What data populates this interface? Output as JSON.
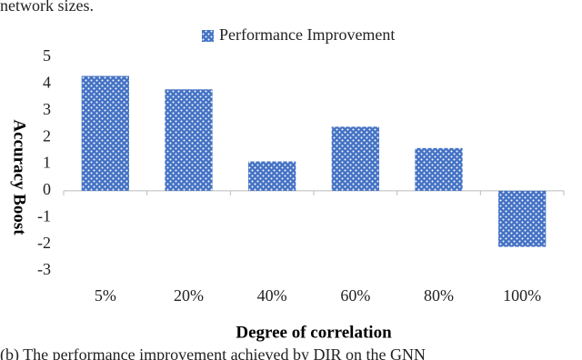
{
  "header_text": "network sizes.",
  "caption": "(b) The performance improvement achieved by DIR on the GNN",
  "chart_data": {
    "type": "bar",
    "x_label": "Degree of correlation",
    "y_label": "Accuracy Boost",
    "categories": [
      "5%",
      "20%",
      "40%",
      "60%",
      "80%",
      "100%"
    ],
    "series": [
      {
        "name": "Performance Improvement",
        "color": "#4472c4",
        "values": [
          4.3,
          3.8,
          1.1,
          2.4,
          1.6,
          -2.1
        ]
      }
    ],
    "ylim": [
      -3,
      5
    ],
    "yticks": [
      -3,
      -2,
      -1,
      0,
      1,
      2,
      3,
      4,
      5
    ],
    "grid": false,
    "legend": "top"
  }
}
